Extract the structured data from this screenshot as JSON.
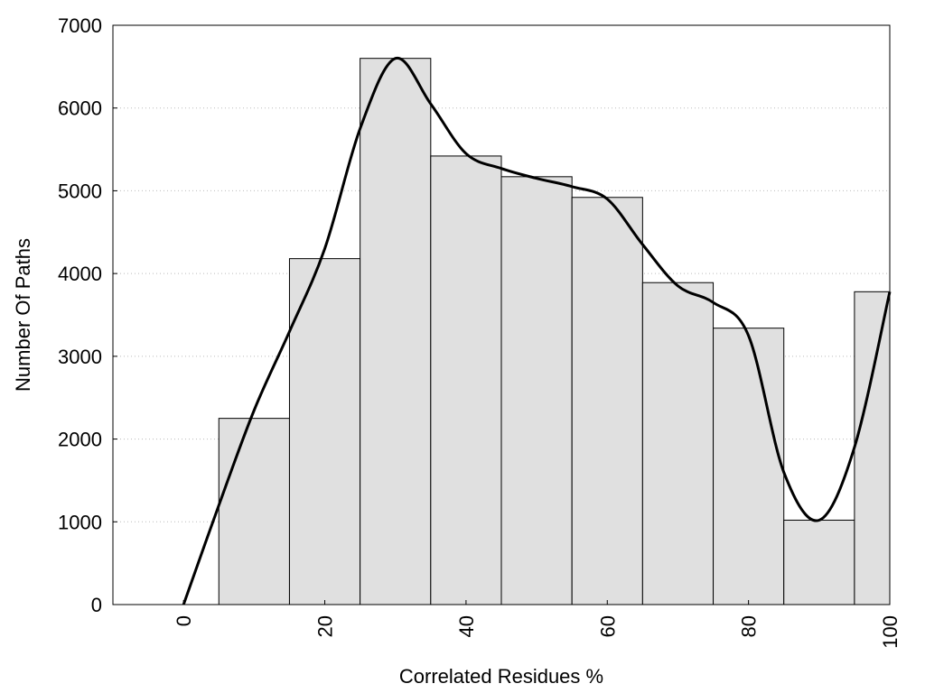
{
  "chart_data": {
    "type": "bar",
    "title": "",
    "xlabel": "Correlated Residues %",
    "ylabel": "Number Of Paths",
    "xlim": [
      -10,
      100
    ],
    "ylim": [
      0,
      7000
    ],
    "x_ticks": [
      0,
      20,
      40,
      60,
      80,
      100
    ],
    "y_ticks": [
      0,
      1000,
      2000,
      3000,
      4000,
      5000,
      6000,
      7000
    ],
    "grid": "horizontal dotted",
    "bar_width": 10,
    "bar_centers": [
      10,
      20,
      30,
      40,
      50,
      60,
      70,
      80,
      90,
      100
    ],
    "values": [
      2250,
      4180,
      6600,
      5420,
      5170,
      4920,
      3890,
      3340,
      1020,
      3780
    ],
    "smooth_curve": {
      "x": [
        0,
        5,
        10,
        15,
        20,
        25,
        30,
        35,
        40,
        45,
        50,
        55,
        60,
        65,
        70,
        75,
        80,
        85,
        90,
        95,
        100
      ],
      "y": [
        0,
        1200,
        2350,
        3300,
        4300,
        5750,
        6600,
        6050,
        5450,
        5270,
        5150,
        5050,
        4900,
        4350,
        3850,
        3650,
        3250,
        1600,
        1020,
        1900,
        3780
      ]
    },
    "colors": {
      "bar_fill": "#e0e0e0",
      "bar_stroke": "#000000",
      "curve": "#000000",
      "grid": "#bbbbbb"
    }
  }
}
